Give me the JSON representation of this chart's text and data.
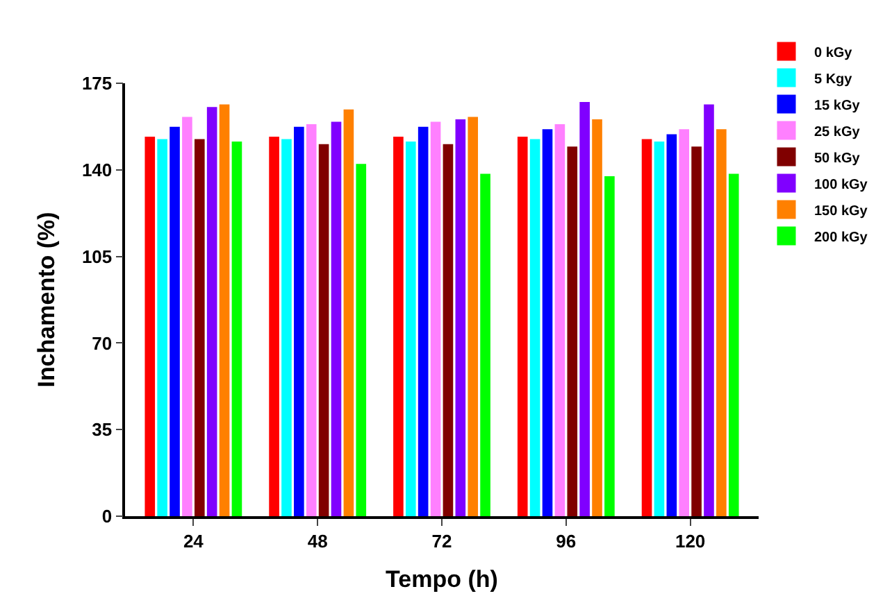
{
  "chart_data": {
    "type": "bar",
    "xlabel": "Tempo (h)",
    "ylabel": "Inchamento (%)",
    "categories": [
      "24",
      "48",
      "72",
      "96",
      "120"
    ],
    "ylim": [
      0,
      175
    ],
    "yticks": [
      0,
      35,
      70,
      105,
      140,
      175
    ],
    "legend": "top right",
    "series": [
      {
        "name": "0 kGy",
        "color": "#ff0000",
        "values": [
          153,
          153,
          153,
          153,
          152
        ]
      },
      {
        "name": "5 Kgy",
        "color": "#00ffff",
        "values": [
          152,
          152,
          151,
          152,
          151
        ]
      },
      {
        "name": "15 kGy",
        "color": "#0000ff",
        "values": [
          157,
          157,
          157,
          156,
          154
        ]
      },
      {
        "name": "25 kGy",
        "color": "#ff80ff",
        "values": [
          161,
          158,
          159,
          158,
          156
        ]
      },
      {
        "name": "50 kGy",
        "color": "#800000",
        "values": [
          152,
          150,
          150,
          149,
          149
        ]
      },
      {
        "name": "100 kGy",
        "color": "#8000ff",
        "values": [
          165,
          159,
          160,
          167,
          166
        ]
      },
      {
        "name": "150 kGy",
        "color": "#ff8000",
        "values": [
          166,
          164,
          161,
          160,
          156
        ]
      },
      {
        "name": "200 kGy",
        "color": "#00ff00",
        "values": [
          151,
          142,
          138,
          137,
          138
        ]
      }
    ]
  }
}
